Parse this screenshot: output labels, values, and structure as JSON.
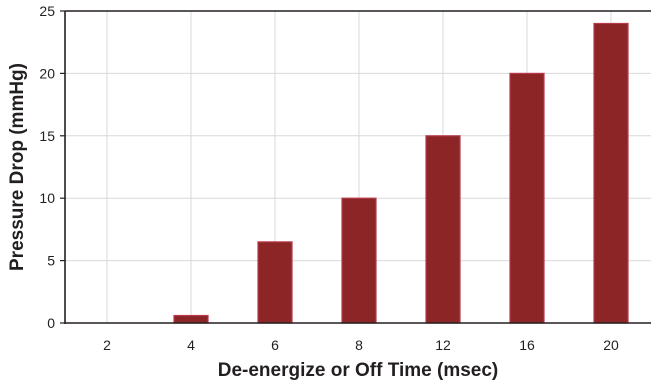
{
  "chart_data": {
    "type": "bar",
    "title": "",
    "xlabel": "De-energize or Off Time (msec)",
    "ylabel": "Pressure Drop (mmHg)",
    "categories": [
      "2",
      "4",
      "6",
      "8",
      "12",
      "16",
      "20"
    ],
    "values": [
      0,
      0.6,
      6.5,
      10,
      15,
      20,
      24
    ],
    "ylim": [
      0,
      25
    ],
    "yticks": [
      0,
      5,
      10,
      15,
      20,
      25
    ],
    "grid": true,
    "legend": "none",
    "colors": {
      "bar_fill": "#8b2526",
      "bar_edge": "#b83a4c",
      "grid": "#d9d9d9",
      "axis": "#231f20"
    }
  }
}
